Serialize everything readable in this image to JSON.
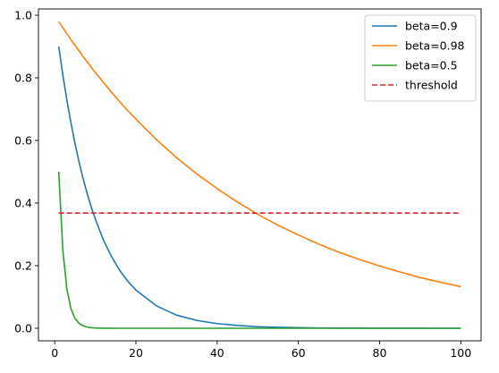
{
  "chart_data": {
    "type": "line",
    "xlim": [
      -4,
      105
    ],
    "ylim": [
      -0.04,
      1.02
    ],
    "x_ticks": [
      0,
      20,
      40,
      60,
      80,
      100
    ],
    "y_ticks": [
      0.0,
      0.2,
      0.4,
      0.6,
      0.8,
      1.0
    ],
    "x_tick_labels": [
      "0",
      "20",
      "40",
      "60",
      "80",
      "100"
    ],
    "y_tick_labels": [
      "0.0",
      "0.2",
      "0.4",
      "0.6",
      "0.8",
      "1.0"
    ],
    "grid": false,
    "legend_position": "top-right",
    "x": [
      1,
      2,
      3,
      4,
      5,
      6,
      7,
      8,
      9,
      10,
      12,
      14,
      16,
      18,
      20,
      25,
      30,
      35,
      40,
      45,
      50,
      55,
      60,
      65,
      70,
      75,
      80,
      85,
      90,
      95,
      100
    ],
    "series": [
      {
        "name": "beta=0.9",
        "color": "#1f77b4",
        "dash": "solid",
        "values": [
          0.9,
          0.81,
          0.729,
          0.656,
          0.59,
          0.531,
          0.478,
          0.43,
          0.387,
          0.349,
          0.282,
          0.229,
          0.185,
          0.15,
          0.122,
          0.072,
          0.042,
          0.025,
          0.015,
          0.009,
          0.005,
          0.003,
          0.002,
          0.001,
          0.0006,
          0.0004,
          0.0002,
          0.0001,
          0.0001,
          0.0,
          0.0
        ]
      },
      {
        "name": "beta=0.98",
        "color": "#ff7f0e",
        "dash": "solid",
        "values": [
          0.98,
          0.96,
          0.941,
          0.922,
          0.904,
          0.886,
          0.868,
          0.851,
          0.834,
          0.817,
          0.785,
          0.754,
          0.724,
          0.695,
          0.668,
          0.603,
          0.545,
          0.493,
          0.446,
          0.403,
          0.364,
          0.329,
          0.298,
          0.269,
          0.243,
          0.22,
          0.199,
          0.18,
          0.162,
          0.147,
          0.133
        ]
      },
      {
        "name": "beta=0.5",
        "color": "#2ca02c",
        "dash": "solid",
        "values": [
          0.5,
          0.25,
          0.125,
          0.0625,
          0.0313,
          0.0156,
          0.0078,
          0.0039,
          0.002,
          0.001,
          0.0002,
          0.0001,
          0.0,
          0.0,
          0.0,
          0.0,
          0.0,
          0.0,
          0.0,
          0.0,
          0.0,
          0.0,
          0.0,
          0.0,
          0.0,
          0.0,
          0.0,
          0.0,
          0.0,
          0.0,
          0.0
        ]
      },
      {
        "name": "threshold",
        "color": "#d62728",
        "dash": "dashed",
        "values": [
          0.368,
          0.368,
          0.368,
          0.368,
          0.368,
          0.368,
          0.368,
          0.368,
          0.368,
          0.368,
          0.368,
          0.368,
          0.368,
          0.368,
          0.368,
          0.368,
          0.368,
          0.368,
          0.368,
          0.368,
          0.368,
          0.368,
          0.368,
          0.368,
          0.368,
          0.368,
          0.368,
          0.368,
          0.368,
          0.368,
          0.368
        ]
      }
    ]
  }
}
